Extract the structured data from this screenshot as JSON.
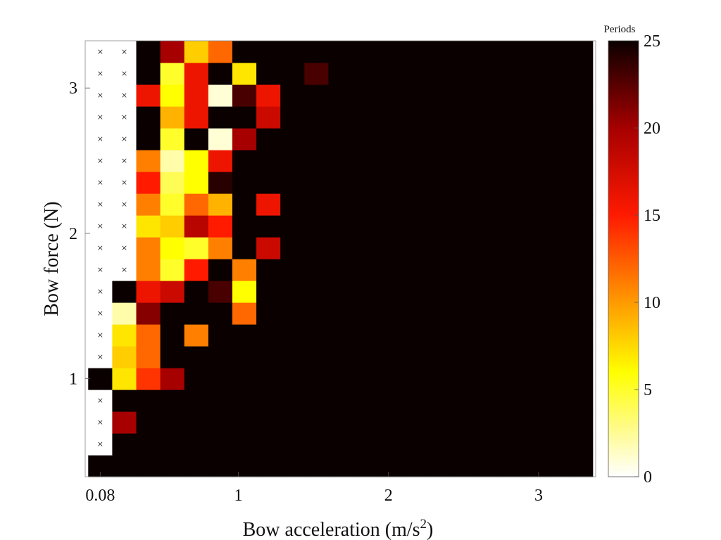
{
  "chart_data": {
    "type": "heatmap",
    "xlabel": "Bow acceleration (m/s",
    "xlabel_sup": "2",
    "xlabel_close": ")",
    "ylabel": "Bow force (N)",
    "x_ticks": [
      {
        "value": 0.08,
        "label": "0.08"
      },
      {
        "value": 1,
        "label": "1"
      },
      {
        "value": 2,
        "label": "2"
      },
      {
        "value": 3,
        "label": "3"
      }
    ],
    "y_ticks": [
      {
        "value": 1,
        "label": "1"
      },
      {
        "value": 2,
        "label": "2"
      },
      {
        "value": 3,
        "label": "3"
      }
    ],
    "x_values": [
      0.08,
      0.24,
      0.4,
      0.56,
      0.72,
      0.88,
      1.04,
      1.2,
      1.36,
      1.52,
      1.68,
      1.84,
      2.0,
      2.16,
      2.32,
      2.48,
      2.64,
      2.8,
      2.96,
      3.12,
      3.28
    ],
    "y_values": [
      0.4,
      0.55,
      0.7,
      0.85,
      1.0,
      1.15,
      1.3,
      1.45,
      1.6,
      1.75,
      1.9,
      2.05,
      2.2,
      2.35,
      2.5,
      2.65,
      2.8,
      2.95,
      3.1,
      3.25
    ],
    "xlim": [
      -0.02,
      3.38
    ],
    "ylim": [
      0.325,
      3.325
    ],
    "colorbar": {
      "title": "Periods",
      "min": 0,
      "max": 25,
      "ticks": [
        {
          "value": 0,
          "label": "0"
        },
        {
          "value": 5,
          "label": "5"
        },
        {
          "value": 10,
          "label": "10"
        },
        {
          "value": 15,
          "label": "15"
        },
        {
          "value": 20,
          "label": "20"
        },
        {
          "value": 25,
          "label": "25"
        }
      ],
      "colormap": "hot (reversed)"
    },
    "no_data_marker": "×",
    "cells_note": "rows listed from bottom (y=0.4) to top (y=3.25); null = no data (marked ×); unlisted cells = 25",
    "cells": [
      [
        25,
        25,
        25,
        25,
        25,
        25,
        25,
        25,
        25,
        25,
        25,
        25,
        25,
        25,
        25,
        25,
        25,
        25,
        25,
        25,
        25
      ],
      [
        null,
        25,
        25,
        25,
        25,
        25,
        25,
        25,
        25,
        25,
        25,
        25,
        25,
        25,
        25,
        25,
        25,
        25,
        25,
        25,
        25
      ],
      [
        null,
        20,
        25,
        25,
        25,
        25,
        25,
        25,
        25,
        25,
        25,
        25,
        25,
        25,
        25,
        25,
        25,
        25,
        25,
        25,
        25
      ],
      [
        null,
        25,
        25,
        25,
        25,
        25,
        25,
        25,
        25,
        25,
        25,
        25,
        25,
        25,
        25,
        25,
        25,
        25,
        25,
        25,
        25
      ],
      [
        25,
        7,
        14,
        20,
        25,
        25,
        25,
        25,
        25,
        25,
        25,
        25,
        25,
        25,
        25,
        25,
        25,
        25,
        25,
        25,
        25
      ],
      [
        null,
        8,
        12,
        25,
        25,
        25,
        25,
        25,
        25,
        25,
        25,
        25,
        25,
        25,
        25,
        25,
        25,
        25,
        25,
        25,
        25
      ],
      [
        null,
        7,
        12,
        25,
        11,
        25,
        25,
        25,
        25,
        25,
        25,
        25,
        25,
        25,
        25,
        25,
        25,
        25,
        25,
        25,
        25
      ],
      [
        null,
        2,
        21,
        25,
        25,
        25,
        12,
        25,
        25,
        25,
        25,
        25,
        25,
        25,
        25,
        25,
        25,
        25,
        25,
        25,
        25
      ],
      [
        null,
        25,
        16,
        18,
        25,
        23,
        6,
        25,
        25,
        25,
        25,
        25,
        25,
        25,
        25,
        25,
        25,
        25,
        25,
        25,
        25
      ],
      [
        null,
        null,
        11,
        5,
        15,
        25,
        11,
        25,
        25,
        25,
        25,
        25,
        25,
        25,
        25,
        25,
        25,
        25,
        25,
        25,
        25
      ],
      [
        null,
        null,
        11,
        6,
        5,
        11,
        25,
        18,
        25,
        25,
        25,
        25,
        25,
        25,
        25,
        25,
        25,
        25,
        25,
        25,
        25
      ],
      [
        null,
        null,
        7,
        8,
        19,
        15,
        25,
        25,
        25,
        25,
        25,
        25,
        25,
        25,
        25,
        25,
        25,
        25,
        25,
        25,
        25
      ],
      [
        null,
        null,
        11,
        5,
        12,
        9,
        25,
        16,
        25,
        25,
        25,
        25,
        25,
        25,
        25,
        25,
        25,
        25,
        25,
        25,
        25
      ],
      [
        null,
        null,
        15,
        4,
        6,
        24,
        25,
        25,
        25,
        25,
        25,
        25,
        25,
        25,
        25,
        25,
        25,
        25,
        25,
        25,
        25
      ],
      [
        null,
        null,
        11,
        2,
        6,
        16,
        25,
        25,
        25,
        25,
        25,
        25,
        25,
        25,
        25,
        25,
        25,
        25,
        25,
        25,
        25
      ],
      [
        null,
        null,
        25,
        5,
        25,
        1,
        20,
        25,
        25,
        25,
        25,
        25,
        25,
        25,
        25,
        25,
        25,
        25,
        25,
        25,
        25
      ],
      [
        null,
        null,
        25,
        9,
        16,
        25,
        25,
        18,
        25,
        25,
        25,
        25,
        25,
        25,
        25,
        25,
        25,
        25,
        25,
        25,
        25
      ],
      [
        null,
        null,
        16,
        6,
        16,
        1,
        23,
        16,
        25,
        25,
        25,
        25,
        25,
        25,
        25,
        25,
        25,
        25,
        25,
        25,
        25
      ],
      [
        null,
        null,
        25,
        5,
        16,
        25,
        7,
        25,
        25,
        23,
        25,
        25,
        25,
        25,
        25,
        25,
        25,
        25,
        25,
        25,
        25
      ],
      [
        null,
        null,
        25,
        20,
        8,
        12,
        25,
        25,
        25,
        25,
        25,
        25,
        25,
        25,
        25,
        25,
        25,
        25,
        25,
        25,
        25
      ]
    ]
  }
}
